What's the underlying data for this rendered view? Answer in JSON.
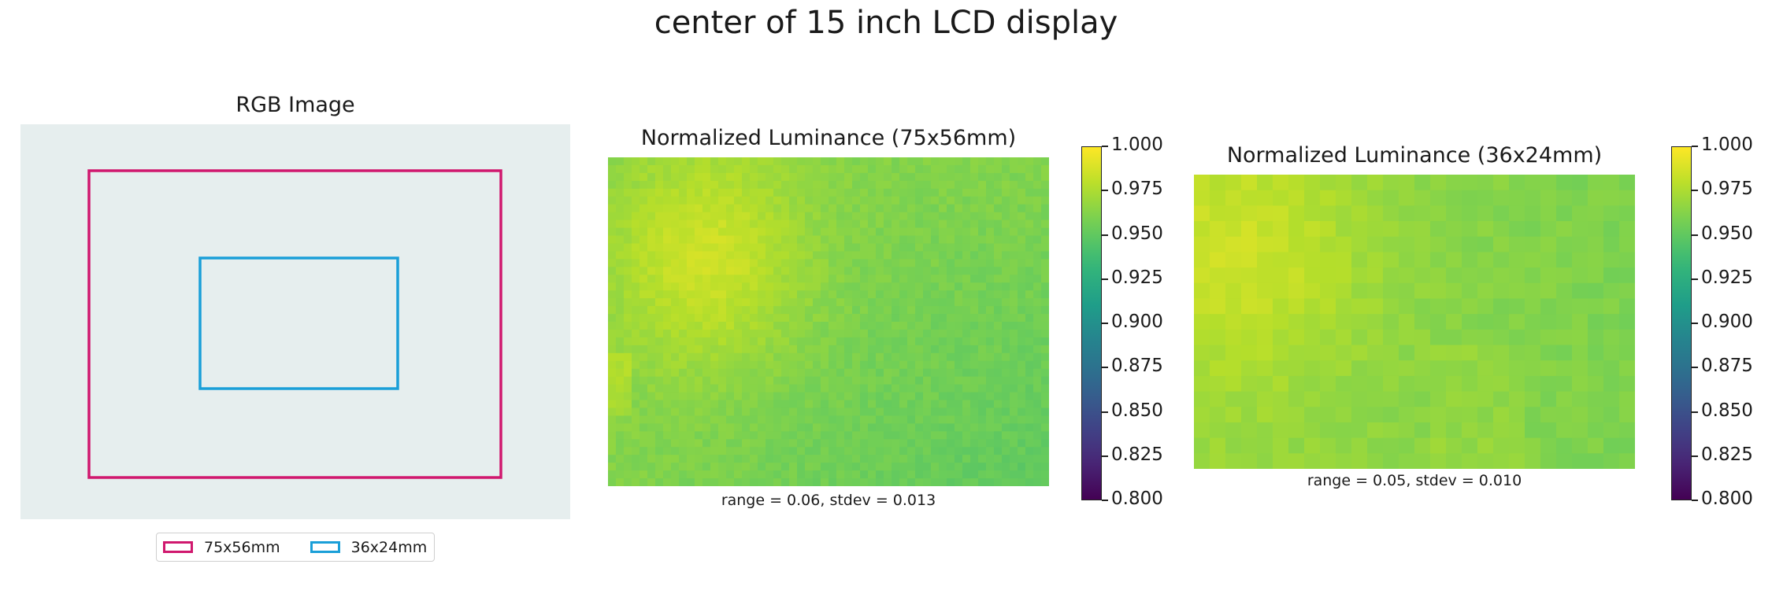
{
  "figure": {
    "suptitle": "center of 15 inch LCD display",
    "panels": {
      "rgb": {
        "title": "RGB Image",
        "background": "#e6eeee"
      },
      "heatmap1": {
        "title": "Normalized Luminance (75x56mm)",
        "summary": "range = 0.06, stdev = 0.013"
      },
      "heatmap2": {
        "title": "Normalized Luminance (36x24mm)",
        "summary": "range = 0.05, stdev = 0.010"
      }
    },
    "legend": {
      "items": [
        {
          "label": "75x56mm",
          "color": "#d0186e"
        },
        {
          "label": "36x24mm",
          "color": "#1a9fd8"
        }
      ]
    },
    "colormap": "viridis"
  },
  "chart_data": [
    {
      "type": "image",
      "title": "RGB Image",
      "rectangles": [
        {
          "label": "75x56mm",
          "color": "#d0186e"
        },
        {
          "label": "36x24mm",
          "color": "#1a9fd8"
        }
      ],
      "legend_position": "bottom-center"
    },
    {
      "type": "heatmap",
      "title": "Normalized Luminance (75x56mm)",
      "annotation": "range = 0.06, stdev = 0.013",
      "colorbar": {
        "range": [
          0.8,
          1.0
        ],
        "ticks": [
          "0.800",
          "0.825",
          "0.850",
          "0.875",
          "0.900",
          "0.925",
          "0.950",
          "0.975",
          "1.000"
        ]
      },
      "grid": {
        "cols": 56,
        "rows": 42
      },
      "value_range": [
        0.94,
        1.0
      ],
      "pattern": "brightest at upper-left, decreasing toward lower-right"
    },
    {
      "type": "heatmap",
      "title": "Normalized Luminance (36x24mm)",
      "annotation": "range = 0.05, stdev = 0.010",
      "colorbar": {
        "range": [
          0.8,
          1.0
        ],
        "ticks": [
          "0.800",
          "0.825",
          "0.850",
          "0.875",
          "0.900",
          "0.925",
          "0.950",
          "0.975",
          "1.000"
        ]
      },
      "grid": {
        "cols": 28,
        "rows": 19
      },
      "value_range": [
        0.95,
        1.0
      ],
      "pattern": "brightest at upper-left, decreasing toward right"
    }
  ]
}
